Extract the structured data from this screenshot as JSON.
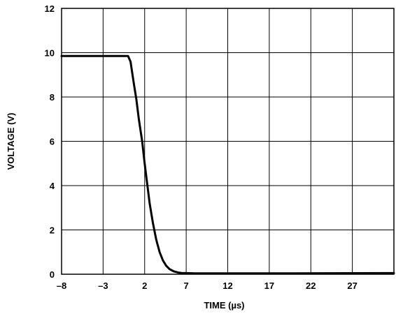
{
  "chart_data": {
    "type": "line",
    "title": "",
    "xlabel": "TIME (µs)",
    "ylabel": "VOLTAGE (V)",
    "xlim": [
      -8,
      32
    ],
    "ylim": [
      0,
      12
    ],
    "x_ticks": [
      -8,
      -3,
      2,
      7,
      12,
      17,
      22,
      27
    ],
    "x_tick_labels": [
      "–8",
      "–3",
      "2",
      "7",
      "12",
      "17",
      "22",
      "27"
    ],
    "y_ticks": [
      0,
      2,
      4,
      6,
      8,
      10,
      12
    ],
    "y_tick_labels": [
      "0",
      "2",
      "4",
      "6",
      "8",
      "10",
      "12"
    ],
    "grid": true,
    "legend": "none",
    "line_color": "#000000",
    "series": [
      {
        "x": [
          -8,
          -2,
          0,
          0.3,
          0.7,
          1.0,
          1.3,
          1.7,
          2.0,
          2.3,
          2.6,
          3.0,
          3.4,
          3.8,
          4.2,
          4.6,
          5.0,
          5.5,
          6.0,
          6.5,
          7.0,
          8.0,
          12,
          20,
          32
        ],
        "y": [
          9.85,
          9.85,
          9.85,
          9.6,
          8.6,
          7.9,
          7.0,
          6.0,
          5.0,
          4.1,
          3.2,
          2.3,
          1.55,
          1.0,
          0.62,
          0.38,
          0.23,
          0.13,
          0.08,
          0.05,
          0.05,
          0.04,
          0.04,
          0.04,
          0.05
        ]
      }
    ]
  }
}
